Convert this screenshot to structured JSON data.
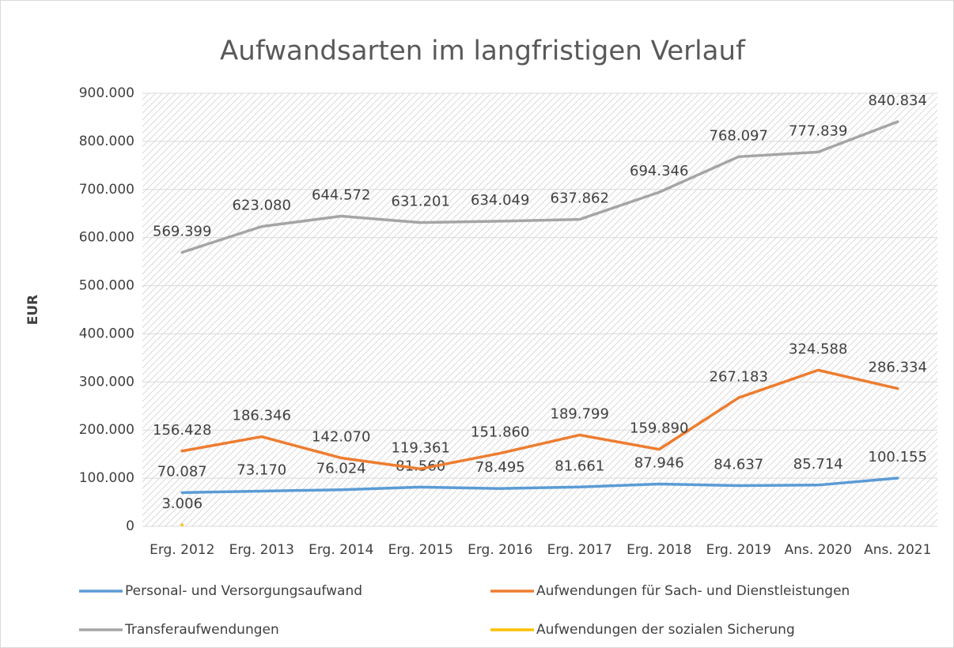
{
  "chart_data": {
    "type": "line",
    "title": "Aufwandsarten im langfristigen Verlauf",
    "y_label": "EUR",
    "categories": [
      "Erg. 2012",
      "Erg. 2013",
      "Erg. 2014",
      "Erg. 2015",
      "Erg. 2016",
      "Erg. 2017",
      "Erg. 2018",
      "Erg. 2019",
      "Ans. 2020",
      "Ans. 2021"
    ],
    "series": [
      {
        "name": "Personal- und Versorgungsaufwand",
        "color": "#5b9bd5",
        "values": [
          70087,
          73170,
          76024,
          81560,
          78495,
          81661,
          87946,
          84637,
          85714,
          100155
        ],
        "value_labels": [
          "70.087",
          "73.170",
          "76.024",
          "81.560",
          "78.495",
          "81.661",
          "87.946",
          "84.637",
          "85.714",
          "100.155"
        ]
      },
      {
        "name": "Aufwendungen für Sach- und Dienstleistungen",
        "color": "#ed7d31",
        "values": [
          156428,
          186346,
          142070,
          119361,
          151860,
          189799,
          159890,
          267183,
          324588,
          286334
        ],
        "value_labels": [
          "156.428",
          "186.346",
          "142.070",
          "119.361",
          "151.860",
          "189.799",
          "159.890",
          "267.183",
          "324.588",
          "286.334"
        ]
      },
      {
        "name": "Transferaufwendungen",
        "color": "#a5a5a5",
        "values": [
          569399,
          623080,
          644572,
          631201,
          634049,
          637862,
          694346,
          768097,
          777839,
          840834
        ],
        "value_labels": [
          "569.399",
          "623.080",
          "644.572",
          "631.201",
          "634.049",
          "637.862",
          "694.346",
          "768.097",
          "777.839",
          "840.834"
        ]
      },
      {
        "name": "Aufwendungen der sozialen Sicherung",
        "color": "#ffc000",
        "values": [
          3006,
          null,
          null,
          null,
          null,
          null,
          null,
          null,
          null,
          null
        ],
        "value_labels": [
          "3.006",
          null,
          null,
          null,
          null,
          null,
          null,
          null,
          null,
          null
        ]
      }
    ],
    "ylim": [
      0,
      900000
    ],
    "yticks": [
      0,
      {
        "value": 100000,
        "label": "100.000"
      },
      {
        "value": 200000,
        "label": "200.000"
      },
      {
        "value": 300000,
        "label": "300.000"
      },
      {
        "value": 400000,
        "label": "400.000"
      },
      {
        "value": 500000,
        "label": "500.000"
      },
      {
        "value": 600000,
        "label": "600.000"
      },
      {
        "value": 700000,
        "label": "700.000"
      },
      {
        "value": 800000,
        "label": "800.000"
      },
      {
        "value": 900000,
        "label": "900.000"
      }
    ],
    "grid": true
  }
}
